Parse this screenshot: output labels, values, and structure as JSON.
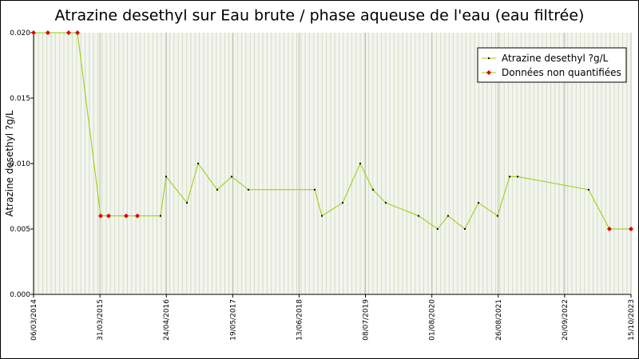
{
  "chart_data": {
    "type": "line",
    "title": "Atrazine desethyl sur Eau brute / phase aqueuse de l'eau (eau filtrée)",
    "y_label": "Atrazine desethyl ?g/L",
    "x": [
      "2014-03-06",
      "2014-05-29",
      "2014-09-28",
      "2014-11-19",
      "2015-04-04",
      "2015-05-21",
      "2015-09-01",
      "2015-11-06",
      "2016-03-21",
      "2016-04-23",
      "2016-08-23",
      "2016-10-28",
      "2017-02-17",
      "2017-05-13",
      "2017-08-19",
      "2018-09-13",
      "2018-10-25",
      "2019-02-24",
      "2019-06-07",
      "2019-08-21",
      "2019-11-04",
      "2020-05-15",
      "2020-09-04",
      "2020-11-04",
      "2021-02-11",
      "2021-05-02",
      "2021-08-22",
      "2021-11-01",
      "2021-12-18",
      "2023-02-08",
      "2023-06-10",
      "2023-10-15"
    ],
    "series": [
      {
        "name": "Atrazine desethyl ?g/L",
        "color": "#000000",
        "values": [
          null,
          null,
          null,
          null,
          null,
          null,
          null,
          null,
          0.006,
          0.009,
          0.007,
          0.01,
          0.008,
          0.009,
          0.008,
          0.008,
          0.006,
          0.007,
          0.01,
          0.008,
          0.007,
          0.006,
          0.005,
          0.006,
          0.005,
          0.007,
          0.006,
          0.009,
          0.009,
          0.008,
          null,
          null
        ]
      },
      {
        "name": "Données non quantifiées",
        "color": "#e00000",
        "values": [
          0.02,
          0.02,
          0.02,
          0.02,
          0.006,
          0.006,
          0.006,
          0.006,
          null,
          null,
          null,
          null,
          null,
          null,
          null,
          null,
          null,
          null,
          null,
          null,
          null,
          null,
          null,
          null,
          null,
          null,
          null,
          null,
          null,
          null,
          0.005,
          0.005
        ]
      }
    ],
    "line_color": "#99cc00",
    "xlim": [
      "2014-03-06",
      "2023-10-15"
    ],
    "xticks": [
      {
        "value": "2014-03-06",
        "label": "06/03/2014"
      },
      {
        "value": "2015-03-31",
        "label": "31/03/2015"
      },
      {
        "value": "2016-04-24",
        "label": "24/04/2016"
      },
      {
        "value": "2017-05-19",
        "label": "19/05/2017"
      },
      {
        "value": "2018-06-13",
        "label": "13/06/2018"
      },
      {
        "value": "2019-07-08",
        "label": "08/07/2019"
      },
      {
        "value": "2020-08-01",
        "label": "01/08/2020"
      },
      {
        "value": "2021-08-26",
        "label": "26/08/2021"
      },
      {
        "value": "2022-09-20",
        "label": "20/09/2022"
      },
      {
        "value": "2023-10-15",
        "label": "15/10/2023"
      }
    ],
    "ylim": [
      0,
      0.02
    ],
    "yticks": [
      {
        "value": 0,
        "label": "0.000"
      },
      {
        "value": 0.005,
        "label": "0.005"
      },
      {
        "value": 0.01,
        "label": "0.010"
      },
      {
        "value": 0.015,
        "label": "0.015"
      },
      {
        "value": 0.02,
        "label": "0.020"
      }
    ],
    "grid": true,
    "legend": "upper right"
  }
}
